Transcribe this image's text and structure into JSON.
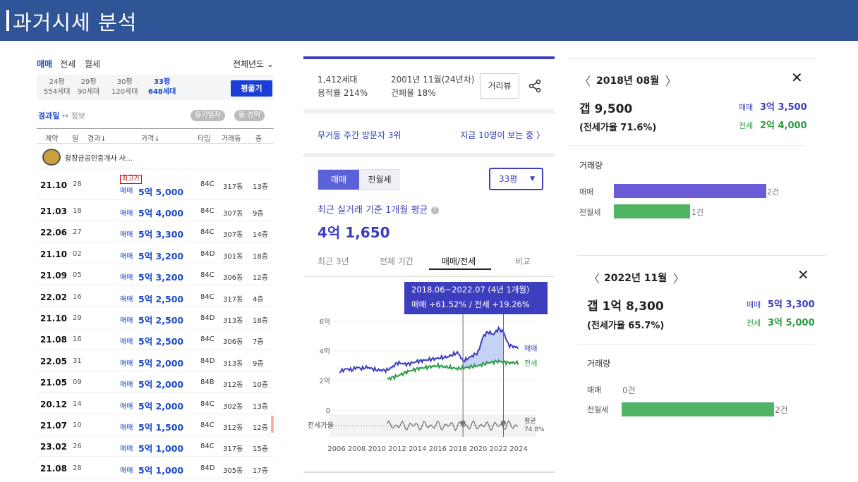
{
  "header": {
    "title": "과거시세 분석"
  },
  "list": {
    "tabs": [
      "매매",
      "전세",
      "월세"
    ],
    "year_select": "전체년도",
    "sizes": [
      {
        "p": "24평",
        "h": "554세대"
      },
      {
        "p": "29평",
        "h": "90세대"
      },
      {
        "p": "30평",
        "h": "120세대"
      },
      {
        "p": "33평",
        "h": "648세대"
      }
    ],
    "pyeong_button": "평풀기",
    "sort_a": "경과일",
    "sort_b": "↔ 정보",
    "pill1": "등기일자",
    "pill2": "동 선택",
    "cols": [
      "계약",
      "일",
      "경과↓",
      "가격↓",
      "타입",
      "거래동",
      "층"
    ],
    "agent": "황장금공인중개사 사…",
    "badge": "최고가",
    "rows": [
      {
        "d": "21.10",
        "dd": "28",
        "ty": "매매",
        "pr": "5억 5,000",
        "t": "84C",
        "dong": "317동",
        "fl": "13층"
      },
      {
        "d": "21.03",
        "dd": "18",
        "ty": "매매",
        "pr": "5억 4,000",
        "t": "84C",
        "dong": "307동",
        "fl": "9층"
      },
      {
        "d": "22.06",
        "dd": "27",
        "ty": "매매",
        "pr": "5억 3,300",
        "t": "84C",
        "dong": "307동",
        "fl": "14층"
      },
      {
        "d": "21.10",
        "dd": "02",
        "ty": "매매",
        "pr": "5억 3,200",
        "t": "84D",
        "dong": "301동",
        "fl": "18층"
      },
      {
        "d": "21.09",
        "dd": "05",
        "ty": "매매",
        "pr": "5억 3,200",
        "t": "84C",
        "dong": "306동",
        "fl": "12층"
      },
      {
        "d": "22.02",
        "dd": "16",
        "ty": "매매",
        "pr": "5억 2,500",
        "t": "84C",
        "dong": "317동",
        "fl": "4층"
      },
      {
        "d": "21.10",
        "dd": "29",
        "ty": "매매",
        "pr": "5억 2,500",
        "t": "84D",
        "dong": "313동",
        "fl": "18층"
      },
      {
        "d": "21.08",
        "dd": "16",
        "ty": "매매",
        "pr": "5억 2,500",
        "t": "84C",
        "dong": "306동",
        "fl": "7층"
      },
      {
        "d": "22.05",
        "dd": "31",
        "ty": "매매",
        "pr": "5억 2,000",
        "t": "84D",
        "dong": "313동",
        "fl": "9층"
      },
      {
        "d": "21.05",
        "dd": "09",
        "ty": "매매",
        "pr": "5억 2,000",
        "t": "84B",
        "dong": "312동",
        "fl": "10층"
      },
      {
        "d": "20.12",
        "dd": "14",
        "ty": "매매",
        "pr": "5억 2,000",
        "t": "84C",
        "dong": "302동",
        "fl": "13층"
      },
      {
        "d": "21.07",
        "dd": "10",
        "ty": "매매",
        "pr": "5억 1,500",
        "t": "84C",
        "dong": "312동",
        "fl": "12층"
      },
      {
        "d": "23.02",
        "dd": "26",
        "ty": "매매",
        "pr": "5억 1,000",
        "t": "84C",
        "dong": "317동",
        "fl": "15층"
      },
      {
        "d": "21.08",
        "dd": "28",
        "ty": "매매",
        "pr": "5억 1,000",
        "t": "84D",
        "dong": "305동",
        "fl": "17층"
      }
    ]
  },
  "complex": {
    "households": "1,412세대",
    "far": "용적률 214%",
    "built": "2001년 11월(24년차)",
    "bcr": "건폐율 18%",
    "view_button": "거리뷰",
    "visit_rank": "무거동 주간 방문자 3위",
    "viewers": "지금 10명이 보는 중 〉",
    "seg_on": "매매",
    "seg_off": "전월세",
    "pyeong_select": "33평",
    "avg_label": "최근 실거래 기준 1개월 평균",
    "avg_value": "4억 1,650",
    "chart_tabs": [
      "최근 3년",
      "전체 기간",
      "매매/전세",
      "비교"
    ],
    "tooltip_line1": "2018.06~2022.07 (4년 1개월)",
    "tooltip_line2": "매매 +61.52% / 전세 +19.26%"
  },
  "chart_data": {
    "type": "line",
    "title": "",
    "x": [
      2006,
      2008,
      2010,
      2012,
      2014,
      2016,
      2018,
      2020,
      2022,
      2024
    ],
    "xticklabels": [
      "2006",
      "2008",
      "2010",
      "2012",
      "2014",
      "2016",
      "2018",
      "2020",
      "2022",
      "2024"
    ],
    "ylabels": [
      "6억",
      "4억",
      "2억",
      "0"
    ],
    "ylim": [
      0,
      6
    ],
    "series": [
      {
        "name": "매매",
        "color": "#3d3ebd",
        "values": [
          [
            2006.3,
            2.6
          ],
          [
            2007,
            2.8
          ],
          [
            2007.5,
            2.7
          ],
          [
            2008,
            2.9
          ],
          [
            2008.5,
            2.8
          ],
          [
            2009,
            2.9
          ],
          [
            2010,
            2.7
          ],
          [
            2011,
            2.7
          ],
          [
            2011.5,
            2.9
          ],
          [
            2012,
            3.2
          ],
          [
            2013,
            3.1
          ],
          [
            2014,
            3.3
          ],
          [
            2015,
            3.4
          ],
          [
            2016,
            3.5
          ],
          [
            2017,
            3.6
          ],
          [
            2018,
            3.9
          ],
          [
            2018.5,
            3.3
          ],
          [
            2019,
            3.5
          ],
          [
            2019.5,
            3.7
          ],
          [
            2020,
            3.9
          ],
          [
            2020.5,
            5.0
          ],
          [
            2021,
            5.3
          ],
          [
            2021.5,
            5.1
          ],
          [
            2022,
            5.5
          ],
          [
            2022.5,
            5.3
          ],
          [
            2023,
            4.4
          ],
          [
            2024,
            4.2
          ]
        ]
      },
      {
        "name": "전세",
        "color": "#2d9b46",
        "values": [
          [
            2011,
            2.1
          ],
          [
            2012,
            2.3
          ],
          [
            2013,
            2.6
          ],
          [
            2014,
            2.8
          ],
          [
            2015,
            2.9
          ],
          [
            2016,
            3.0
          ],
          [
            2017,
            2.9
          ],
          [
            2018,
            2.8
          ],
          [
            2019,
            2.9
          ],
          [
            2020,
            3.0
          ],
          [
            2021,
            3.2
          ],
          [
            2022,
            3.3
          ],
          [
            2023,
            3.2
          ],
          [
            2024,
            3.2
          ]
        ]
      }
    ],
    "ratio_label": "전세가율",
    "ratio_series": {
      "name": "평균",
      "value_text": "74.8%",
      "color": "#777"
    },
    "highlight_range": [
      2018.5,
      2022.5
    ],
    "legend": [
      "매매",
      "전세"
    ]
  },
  "detail_2018": {
    "month": "2018년 08월",
    "gap": "갭 9,500",
    "ratio": "(전세가율 71.6%)",
    "sale_label": "매매",
    "sale_value": "3억 3,500",
    "jeonse_label": "전세",
    "jeonse_value": "2억 4,000",
    "volume": "거래량",
    "bar_sale_label": "매매",
    "bar_sale_count": "2건",
    "bar_sale_value": 2,
    "bar_rent_label": "전월세",
    "bar_rent_count": "1건",
    "bar_rent_value": 1
  },
  "detail_2022": {
    "month": "2022년 11월",
    "gap": "갭 1억 8,300",
    "ratio": "(전세가율 65.7%)",
    "sale_label": "매매",
    "sale_value": "5억 3,300",
    "jeonse_label": "전세",
    "jeonse_value": "3억 5,000",
    "volume": "거래량",
    "bar_sale_label": "매매",
    "bar_sale_count": "0건",
    "bar_sale_value": 0,
    "bar_rent_label": "전월세",
    "bar_rent_count": "2건",
    "bar_rent_value": 2
  }
}
